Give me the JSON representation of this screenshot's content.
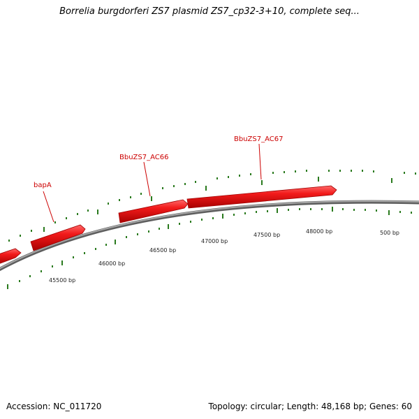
{
  "title": "Borrelia burgdorferi ZS7 plasmid ZS7_cp32-3+10, complete seq...",
  "footer": {
    "accession": "Accession: NC_011720",
    "summary": "Topology: circular; Length: 48,168 bp; Genes: 60"
  },
  "genes": [
    {
      "name": "bapA",
      "label": "bapA"
    },
    {
      "name": "BbuZS7_AC66",
      "label": "BbuZS7_AC66"
    },
    {
      "name": "BbuZS7_AC67",
      "label": "BbuZS7_AC67"
    },
    {
      "name": "",
      "label": ""
    }
  ],
  "tick_labels": [
    "45500 bp",
    "46000 bp",
    "46500 bp",
    "47000 bp",
    "47500 bp",
    "48000 bp",
    "500 bp"
  ],
  "colors": {
    "gene_fill": "#ee1111",
    "gene_edge": "#b00000",
    "gene_label": "#cc0000",
    "backbone": "#808080",
    "ticks": "#2a7a1e"
  }
}
